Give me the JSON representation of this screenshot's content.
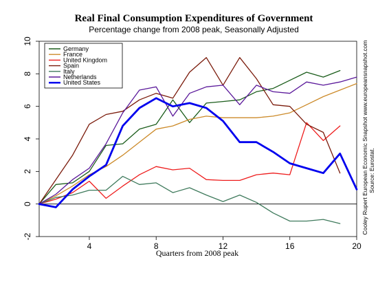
{
  "chart_data": {
    "type": "line",
    "title": "Real Final Consumption Expenditures of Government",
    "subtitle": "Percentage change from 2008 peak, Seasonally Adjusted",
    "xlabel": "Quarters from 2008 peak",
    "ylabel": "",
    "xlim": [
      1,
      20
    ],
    "ylim": [
      -2,
      10
    ],
    "xticks": [
      4,
      8,
      12,
      16,
      20
    ],
    "yticks": [
      -2,
      0,
      2,
      4,
      6,
      8,
      10
    ],
    "ytick_labels": [
      "-2",
      "0",
      "2",
      "4",
      "6",
      "8",
      "10"
    ],
    "xtick_labels": [
      "4",
      "8",
      "12",
      "16",
      "20"
    ],
    "zero_line": true,
    "legend_position": "top-left",
    "source_lines": [
      "Source: Eurostat.",
      "Cooley Rupert European Economic Snapshot www.europeansnapshot.com"
    ],
    "x": [
      1,
      2,
      3,
      4,
      5,
      6,
      7,
      8,
      9,
      10,
      11,
      12,
      13,
      14,
      15,
      16,
      17,
      18,
      19,
      20
    ],
    "series": [
      {
        "name": "Germany",
        "color": "#1a5c1a",
        "width": 1.3,
        "values": [
          0,
          1.2,
          1.3,
          2.0,
          3.6,
          3.7,
          4.6,
          4.9,
          6.4,
          5.0,
          6.2,
          6.3,
          6.4,
          6.9,
          7.1,
          7.6,
          8.1,
          7.8,
          8.2,
          null
        ]
      },
      {
        "name": "France",
        "color": "#cc8a29",
        "width": 1.3,
        "values": [
          0,
          0.5,
          1.1,
          1.8,
          2.3,
          3.0,
          3.8,
          4.6,
          4.8,
          5.2,
          5.4,
          5.3,
          5.3,
          5.3,
          5.4,
          5.6,
          6.1,
          6.6,
          7.0,
          7.4
        ]
      },
      {
        "name": "United Kingdom",
        "color": "#ee1c1c",
        "width": 1.3,
        "values": [
          0,
          0.3,
          0.7,
          1.4,
          0.35,
          1.1,
          1.8,
          2.3,
          2.1,
          2.2,
          1.5,
          1.45,
          1.45,
          1.8,
          1.9,
          1.8,
          5.0,
          3.9,
          4.8,
          null
        ]
      },
      {
        "name": "Spain",
        "color": "#7a1a0a",
        "width": 1.3,
        "values": [
          0,
          1.5,
          3.0,
          4.9,
          5.5,
          5.7,
          6.4,
          6.8,
          6.5,
          8.1,
          9.0,
          7.3,
          9.0,
          7.7,
          6.1,
          6.0,
          4.9,
          4.4,
          1.9,
          null
        ]
      },
      {
        "name": "Italy",
        "color": "#3f7a5c",
        "width": 1.3,
        "values": [
          0,
          0.4,
          0.55,
          0.85,
          0.85,
          1.7,
          1.2,
          1.3,
          0.7,
          1.0,
          0.55,
          0.15,
          0.55,
          0.1,
          -0.55,
          -1.05,
          -1.05,
          -0.95,
          -1.2,
          null
        ]
      },
      {
        "name": "Netherlands",
        "color": "#5a189a",
        "width": 1.3,
        "values": [
          0,
          0.6,
          1.5,
          2.2,
          3.7,
          5.6,
          7.0,
          7.2,
          5.4,
          6.8,
          7.2,
          7.3,
          6.1,
          7.3,
          6.9,
          6.8,
          7.5,
          7.3,
          7.5,
          7.8
        ]
      },
      {
        "name": "United States",
        "color": "#0000ee",
        "width": 2.8,
        "values": [
          0,
          -0.2,
          0.9,
          1.7,
          2.4,
          4.8,
          5.9,
          6.5,
          6.0,
          6.2,
          5.9,
          5.1,
          3.8,
          3.8,
          3.2,
          2.5,
          2.2,
          1.9,
          3.1,
          0.9
        ]
      }
    ]
  }
}
